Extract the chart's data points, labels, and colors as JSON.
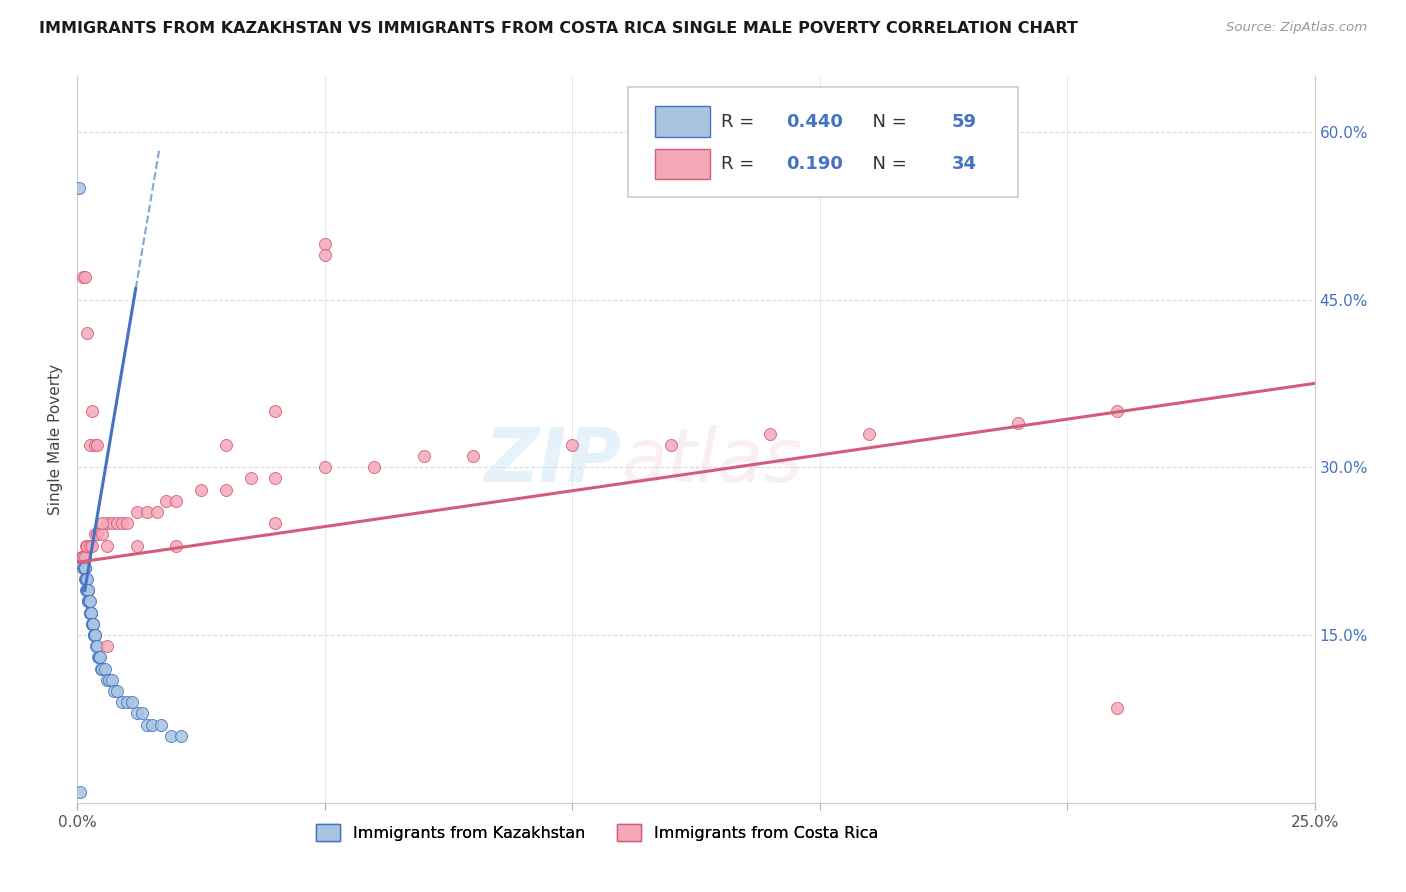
{
  "title": "IMMIGRANTS FROM KAZAKHSTAN VS IMMIGRANTS FROM COSTA RICA SINGLE MALE POVERTY CORRELATION CHART",
  "source": "Source: ZipAtlas.com",
  "legend_label_kaz": "Immigrants from Kazakhstan",
  "legend_label_cr": "Immigrants from Costa Rica",
  "ylabel": "Single Male Poverty",
  "r_kaz": 0.44,
  "n_kaz": 59,
  "r_cr": 0.19,
  "n_cr": 34,
  "xlim": [
    0.0,
    0.25
  ],
  "ylim": [
    0.0,
    0.65
  ],
  "ytick_vals": [
    0.15,
    0.3,
    0.45,
    0.6
  ],
  "ytick_labels": [
    "15.0%",
    "30.0%",
    "45.0%",
    "60.0%"
  ],
  "xtick_vals": [
    0.0,
    0.25
  ],
  "xtick_labels": [
    "0.0%",
    "25.0%"
  ],
  "color_kaz": "#a8c4e0",
  "color_cr": "#f4a8b8",
  "line_color_kaz": "#4472c4",
  "line_color_cr": "#d45c7a",
  "bg_color": "#ffffff",
  "grid_color": "#cccccc",
  "kaz_x": [
    0.001,
    0.0012,
    0.0012,
    0.0013,
    0.0014,
    0.0015,
    0.0016,
    0.0016,
    0.0017,
    0.0017,
    0.0018,
    0.0018,
    0.002,
    0.002,
    0.002,
    0.0021,
    0.0021,
    0.0022,
    0.0022,
    0.0023,
    0.0024,
    0.0025,
    0.0025,
    0.0026,
    0.0027,
    0.0028,
    0.0029,
    0.003,
    0.0031,
    0.0032,
    0.0033,
    0.0034,
    0.0035,
    0.0036,
    0.0038,
    0.004,
    0.0042,
    0.0044,
    0.0046,
    0.0048,
    0.005,
    0.0055,
    0.006,
    0.0065,
    0.007,
    0.0075,
    0.008,
    0.009,
    0.01,
    0.011,
    0.012,
    0.013,
    0.014,
    0.015,
    0.017,
    0.019,
    0.021,
    0.0005,
    0.0003
  ],
  "kaz_y": [
    0.22,
    0.22,
    0.21,
    0.22,
    0.21,
    0.21,
    0.2,
    0.21,
    0.2,
    0.2,
    0.19,
    0.2,
    0.19,
    0.2,
    0.19,
    0.19,
    0.18,
    0.19,
    0.18,
    0.18,
    0.18,
    0.17,
    0.18,
    0.17,
    0.17,
    0.17,
    0.16,
    0.16,
    0.16,
    0.16,
    0.15,
    0.15,
    0.15,
    0.15,
    0.14,
    0.14,
    0.13,
    0.13,
    0.13,
    0.12,
    0.12,
    0.12,
    0.11,
    0.11,
    0.11,
    0.1,
    0.1,
    0.09,
    0.09,
    0.09,
    0.08,
    0.08,
    0.07,
    0.07,
    0.07,
    0.06,
    0.06,
    0.01,
    0.55
  ],
  "cr_x": [
    0.001,
    0.0012,
    0.0015,
    0.0018,
    0.002,
    0.0025,
    0.003,
    0.0035,
    0.004,
    0.005,
    0.006,
    0.007,
    0.008,
    0.009,
    0.01,
    0.012,
    0.014,
    0.016,
    0.018,
    0.02,
    0.025,
    0.03,
    0.035,
    0.04,
    0.05,
    0.06,
    0.07,
    0.08,
    0.1,
    0.12,
    0.14,
    0.16,
    0.19,
    0.21
  ],
  "cr_y": [
    0.22,
    0.22,
    0.22,
    0.23,
    0.23,
    0.23,
    0.23,
    0.24,
    0.24,
    0.24,
    0.25,
    0.25,
    0.25,
    0.25,
    0.25,
    0.26,
    0.26,
    0.26,
    0.27,
    0.27,
    0.28,
    0.28,
    0.29,
    0.29,
    0.3,
    0.3,
    0.31,
    0.31,
    0.32,
    0.32,
    0.33,
    0.33,
    0.34,
    0.35
  ],
  "cr_extra_x": [
    0.0012,
    0.0015,
    0.002,
    0.0025,
    0.003,
    0.0035,
    0.004,
    0.005,
    0.006,
    0.012,
    0.02,
    0.03,
    0.21,
    0.05,
    0.04,
    0.006,
    0.05,
    0.04
  ],
  "cr_extra_y": [
    0.47,
    0.47,
    0.42,
    0.32,
    0.35,
    0.32,
    0.32,
    0.25,
    0.14,
    0.23,
    0.23,
    0.32,
    0.085,
    0.5,
    0.25,
    0.23,
    0.49,
    0.35
  ]
}
